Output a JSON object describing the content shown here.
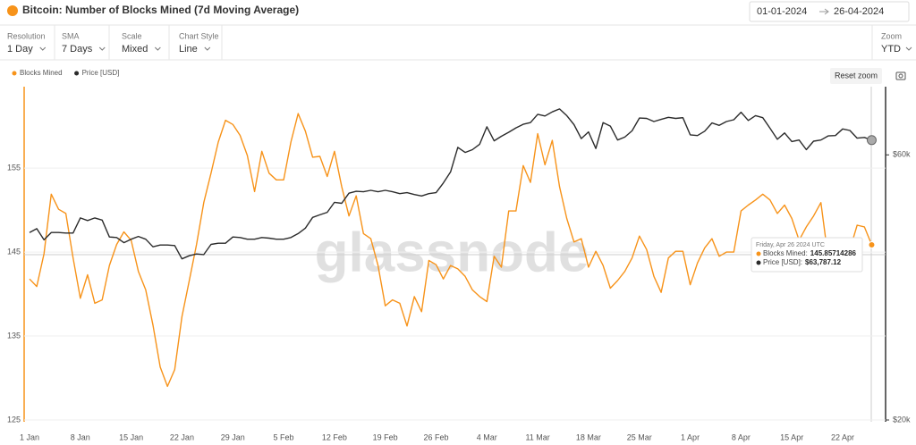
{
  "header": {
    "title": "Bitcoin: Number of Blocks Mined (7d Moving Average)",
    "date_from": "01-01-2024",
    "date_to": "26-04-2024"
  },
  "controls": [
    {
      "label": "Resolution",
      "value": "1 Day"
    },
    {
      "label": "SMA",
      "value": "7 Days"
    },
    {
      "label": "Scale",
      "value": "Mixed"
    },
    {
      "label": "Chart Style",
      "value": "Line"
    }
  ],
  "zoom": {
    "label": "Zoom",
    "value": "YTD"
  },
  "reset_button": "Reset zoom",
  "chart_data": {
    "type": "line",
    "watermark": "glassnode",
    "categories": [
      "1 Jan",
      null,
      null,
      null,
      null,
      null,
      null,
      "8 Jan",
      null,
      null,
      null,
      null,
      null,
      null,
      "15 Jan",
      null,
      null,
      null,
      null,
      null,
      null,
      "22 Jan",
      null,
      null,
      null,
      null,
      null,
      null,
      "29 Jan",
      null,
      null,
      null,
      null,
      null,
      null,
      "5 Feb",
      null,
      null,
      null,
      null,
      null,
      null,
      "12 Feb",
      null,
      null,
      null,
      null,
      null,
      null,
      "19 Feb",
      null,
      null,
      null,
      null,
      null,
      null,
      "26 Feb",
      null,
      null,
      null,
      null,
      null,
      null,
      "4 Mar",
      null,
      null,
      null,
      null,
      null,
      null,
      "11 Mar",
      null,
      null,
      null,
      null,
      null,
      null,
      "18 Mar",
      null,
      null,
      null,
      null,
      null,
      null,
      "25 Mar",
      null,
      null,
      null,
      null,
      null,
      null,
      "1 Apr",
      null,
      null,
      null,
      null,
      null,
      null,
      "8 Apr",
      null,
      null,
      null,
      null,
      null,
      null,
      "15 Apr",
      null,
      null,
      null,
      null,
      null,
      null,
      "22 Apr",
      null,
      null,
      null,
      null
    ],
    "series": [
      {
        "name": "Blocks Mined",
        "color": "#f7931a",
        "axis": "y",
        "values": [
          141.8,
          140.9,
          144.8,
          151.9,
          150.1,
          149.6,
          144.3,
          139.5,
          142.3,
          138.9,
          139.3,
          143.4,
          145.9,
          147.4,
          146.4,
          142.7,
          140.5,
          136.3,
          131.3,
          129.0,
          131.0,
          137.3,
          141.6,
          145.9,
          150.9,
          154.4,
          158.1,
          160.7,
          160.2,
          158.9,
          156.5,
          152.2,
          157.0,
          154.4,
          153.6,
          153.6,
          158.1,
          161.5,
          159.4,
          156.3,
          156.4,
          154.0,
          157.0,
          152.8,
          149.3,
          151.7,
          147.2,
          146.6,
          143.4,
          138.6,
          139.3,
          138.9,
          136.2,
          139.7,
          137.9,
          144.0,
          143.5,
          141.8,
          143.4,
          143.0,
          142.1,
          140.5,
          139.7,
          139.1,
          144.5,
          143.2,
          149.9,
          149.9,
          155.3,
          153.3,
          159.1,
          155.4,
          158.3,
          152.8,
          149.0,
          146.2,
          146.6,
          143.2,
          145.1,
          143.4,
          140.7,
          141.6,
          142.7,
          144.3,
          146.9,
          145.3,
          142.1,
          140.2,
          144.3,
          145.1,
          145.1,
          141.1,
          143.7,
          145.5,
          146.6,
          144.5,
          145.0,
          145.0,
          149.9,
          150.6,
          151.2,
          151.9,
          151.2,
          149.6,
          150.6,
          149.0,
          146.4,
          148.0,
          149.3,
          150.9,
          144.3,
          145.3,
          146.2,
          145.3,
          148.2,
          148.0,
          145.85714286
        ]
      },
      {
        "name": "Price [USD]",
        "color": "#2b2b2b",
        "axis": "y2",
        "values": [
          43500,
          44200,
          42200,
          43500,
          43500,
          43400,
          43400,
          46200,
          45700,
          46200,
          45800,
          42700,
          42600,
          41700,
          42300,
          42800,
          42300,
          41000,
          41300,
          41300,
          41200,
          39000,
          39500,
          39800,
          39700,
          41400,
          41600,
          41600,
          42700,
          42600,
          42300,
          42300,
          42600,
          42500,
          42300,
          42300,
          42600,
          43300,
          44300,
          46300,
          46800,
          47300,
          49300,
          49100,
          51200,
          51600,
          51500,
          51800,
          51500,
          51800,
          51500,
          51100,
          51300,
          50900,
          50600,
          51100,
          51300,
          53400,
          55900,
          61900,
          60600,
          61300,
          62700,
          67400,
          63600,
          64800,
          65900,
          67100,
          68100,
          68600,
          71000,
          70500,
          71700,
          72600,
          70600,
          68000,
          64200,
          66000,
          61600,
          68600,
          67600,
          63800,
          64600,
          66300,
          69900,
          69800,
          68900,
          69500,
          70100,
          69800,
          70000,
          65200,
          65000,
          66200,
          68500,
          67800,
          68900,
          69400,
          71600,
          69200,
          70600,
          70000,
          67000,
          64000,
          65700,
          63400,
          63800,
          61300,
          63500,
          63800,
          64900,
          65000,
          66800,
          66400,
          64300,
          64500,
          63787.12
        ]
      }
    ],
    "ylim": [
      125,
      164.7
    ],
    "yticks": [
      125,
      135,
      145,
      155
    ],
    "y2lim": [
      20000,
      79600
    ],
    "y2ticks": [
      {
        "value": 20000,
        "label": "$20k"
      },
      {
        "value": 60000,
        "label": "$60k"
      }
    ],
    "y2scale": "log",
    "grid": true,
    "legend": "top-left",
    "tooltip": {
      "title": "Friday, Apr 26 2024 UTC",
      "labels": [
        "Blocks Mined:",
        "Price [USD]:"
      ],
      "price_label": "$63,787.12"
    }
  }
}
